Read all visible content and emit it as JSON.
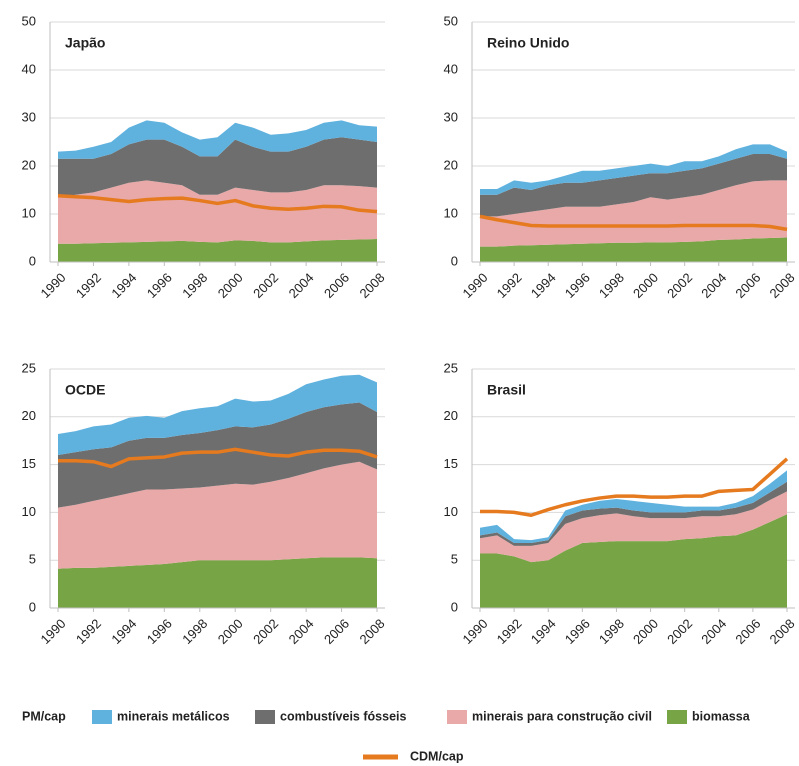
{
  "chart_data": [
    {
      "type": "area",
      "stacked": true,
      "title": "Japão",
      "x": [
        1990,
        1991,
        1992,
        1993,
        1994,
        1995,
        1996,
        1997,
        1998,
        1999,
        2000,
        2001,
        2002,
        2003,
        2004,
        2005,
        2006,
        2007,
        2008
      ],
      "xlim": [
        1990,
        2008
      ],
      "xticks": [
        1990,
        1992,
        1994,
        1996,
        1998,
        2000,
        2002,
        2004,
        2006,
        2008
      ],
      "ylim": [
        0,
        50
      ],
      "yticks": [
        0,
        10,
        20,
        30,
        40,
        50
      ],
      "grid": true,
      "series": [
        {
          "values": [
            1.5,
            1.7,
            2.5,
            2.5,
            3.5,
            4,
            3.5,
            3,
            3.5,
            4,
            3.5,
            4,
            3.5,
            3.8,
            3.5,
            3.5,
            3.5,
            3,
            3.2
          ]
        },
        {
          "values": [
            8,
            7.5,
            7,
            7,
            8,
            8.5,
            9,
            8,
            8,
            8,
            10,
            9,
            8.5,
            8.5,
            9,
            9.5,
            10,
            9.7,
            9.5
          ]
        },
        {
          "values": [
            9.7,
            10.2,
            10.6,
            11.5,
            12.4,
            12.8,
            12.2,
            11.6,
            9.8,
            9.9,
            11.0,
            10.6,
            10.4,
            10.4,
            10.7,
            11.5,
            11.4,
            11.1,
            10.7
          ]
        },
        {
          "values": [
            3.8,
            3.8,
            3.9,
            4.0,
            4.1,
            4.2,
            4.3,
            4.4,
            4.2,
            4.1,
            4.5,
            4.4,
            4.1,
            4.1,
            4.3,
            4.5,
            4.6,
            4.7,
            4.8
          ]
        }
      ],
      "line": {
        "values": [
          13.8,
          13.6,
          13.4,
          13.0,
          12.6,
          13.0,
          13.2,
          13.3,
          12.8,
          12.2,
          12.8,
          11.7,
          11.2,
          11.0,
          11.2,
          11.6,
          11.5,
          10.8,
          10.5
        ]
      }
    },
    {
      "type": "area",
      "stacked": true,
      "title": "Reino Unido",
      "x": [
        1990,
        1991,
        1992,
        1993,
        1994,
        1995,
        1996,
        1997,
        1998,
        1999,
        2000,
        2001,
        2002,
        2003,
        2004,
        2005,
        2006,
        2007,
        2008
      ],
      "xlim": [
        1990,
        2008
      ],
      "xticks": [
        1990,
        1992,
        1994,
        1996,
        1998,
        2000,
        2002,
        2004,
        2006,
        2008
      ],
      "ylim": [
        0,
        50
      ],
      "yticks": [
        0,
        10,
        20,
        30,
        40,
        50
      ],
      "grid": true,
      "series": [
        {
          "values": [
            1.2,
            1.2,
            1.5,
            1.5,
            1,
            1.5,
            2.5,
            2,
            2,
            2,
            2,
            1.5,
            2,
            1.5,
            1.5,
            2,
            2,
            2,
            1.5
          ]
        },
        {
          "values": [
            4.5,
            4.5,
            5.5,
            4.5,
            5,
            5,
            5,
            5.5,
            5.5,
            5.5,
            5,
            5.5,
            5.5,
            5.5,
            5.5,
            5.5,
            5.7,
            5.5,
            4.5
          ]
        },
        {
          "values": [
            6.3,
            6.3,
            6.6,
            7.0,
            7.4,
            7.8,
            7.7,
            7.6,
            8.0,
            8.5,
            9.4,
            8.9,
            9.3,
            9.7,
            10.4,
            11.3,
            11.9,
            12.0,
            11.9
          ]
        },
        {
          "values": [
            3.2,
            3.2,
            3.4,
            3.5,
            3.6,
            3.7,
            3.8,
            3.9,
            4.0,
            4.0,
            4.1,
            4.1,
            4.2,
            4.3,
            4.6,
            4.7,
            4.9,
            5.0,
            5.1
          ]
        }
      ],
      "line": {
        "values": [
          9.5,
          8.8,
          8.2,
          7.6,
          7.5,
          7.5,
          7.5,
          7.5,
          7.5,
          7.5,
          7.5,
          7.5,
          7.6,
          7.6,
          7.6,
          7.6,
          7.6,
          7.4,
          6.8
        ]
      }
    },
    {
      "type": "area",
      "stacked": true,
      "title": "OCDE",
      "x": [
        1990,
        1991,
        1992,
        1993,
        1994,
        1995,
        1996,
        1997,
        1998,
        1999,
        2000,
        2001,
        2002,
        2003,
        2004,
        2005,
        2006,
        2007,
        2008
      ],
      "xlim": [
        1990,
        2008
      ],
      "xticks": [
        1990,
        1992,
        1994,
        1996,
        1998,
        2000,
        2002,
        2004,
        2006,
        2008
      ],
      "ylim": [
        0,
        25
      ],
      "yticks": [
        0,
        5,
        10,
        15,
        20,
        25
      ],
      "grid": true,
      "series": [
        {
          "values": [
            2.2,
            2.2,
            2.4,
            2.4,
            2.4,
            2.3,
            2.1,
            2.5,
            2.6,
            2.5,
            2.9,
            2.7,
            2.5,
            2.6,
            2.9,
            2.9,
            3.0,
            2.9,
            3.1
          ]
        },
        {
          "values": [
            5.5,
            5.5,
            5.4,
            5.2,
            5.5,
            5.4,
            5.4,
            5.6,
            5.7,
            5.8,
            6.0,
            6.0,
            6.0,
            6.2,
            6.4,
            6.4,
            6.3,
            6.2,
            6.0
          ]
        },
        {
          "values": [
            6.4,
            6.6,
            7.0,
            7.3,
            7.6,
            7.9,
            7.8,
            7.7,
            7.6,
            7.8,
            8.0,
            7.9,
            8.2,
            8.5,
            8.9,
            9.3,
            9.7,
            10.0,
            9.3
          ]
        },
        {
          "values": [
            4.1,
            4.2,
            4.2,
            4.3,
            4.4,
            4.5,
            4.6,
            4.8,
            5.0,
            5.0,
            5.0,
            5.0,
            5.0,
            5.1,
            5.2,
            5.3,
            5.3,
            5.3,
            5.2
          ]
        }
      ],
      "line": {
        "values": [
          15.4,
          15.4,
          15.3,
          14.8,
          15.6,
          15.7,
          15.8,
          16.2,
          16.3,
          16.3,
          16.6,
          16.3,
          16.0,
          15.9,
          16.3,
          16.5,
          16.5,
          16.4,
          15.8
        ]
      }
    },
    {
      "type": "area",
      "stacked": true,
      "title": "Brasil",
      "x": [
        1990,
        1991,
        1992,
        1993,
        1994,
        1995,
        1996,
        1997,
        1998,
        1999,
        2000,
        2001,
        2002,
        2003,
        2004,
        2005,
        2006,
        2007,
        2008
      ],
      "xlim": [
        1990,
        2008
      ],
      "xticks": [
        1990,
        1992,
        1994,
        1996,
        1998,
        2000,
        2002,
        2004,
        2006,
        2008
      ],
      "ylim": [
        0,
        25
      ],
      "yticks": [
        0,
        5,
        10,
        15,
        20,
        25
      ],
      "grid": true,
      "series": [
        {
          "values": [
            0.8,
            0.8,
            0.4,
            0.3,
            0.3,
            0.6,
            0.6,
            0.8,
            0.9,
            1.0,
            1.0,
            0.8,
            0.6,
            0.4,
            0.4,
            0.5,
            0.7,
            0.9,
            1.2
          ]
        },
        {
          "values": [
            0.3,
            0.3,
            0.3,
            0.3,
            0.3,
            0.8,
            0.8,
            0.7,
            0.6,
            0.6,
            0.6,
            0.6,
            0.6,
            0.6,
            0.6,
            0.7,
            0.7,
            0.8,
            1.0
          ]
        },
        {
          "values": [
            1.6,
            1.9,
            1.1,
            1.7,
            1.8,
            2.8,
            2.6,
            2.8,
            2.9,
            2.6,
            2.4,
            2.4,
            2.2,
            2.3,
            2.1,
            2.2,
            2.1,
            2.3,
            2.4
          ]
        },
        {
          "values": [
            5.7,
            5.7,
            5.4,
            4.8,
            5.0,
            6.0,
            6.8,
            6.9,
            7.0,
            7.0,
            7.0,
            7.0,
            7.2,
            7.3,
            7.5,
            7.6,
            8.2,
            9.0,
            9.8
          ]
        }
      ],
      "line": {
        "values": [
          10.1,
          10.1,
          10.0,
          9.7,
          10.3,
          10.8,
          11.2,
          11.5,
          11.7,
          11.7,
          11.6,
          11.6,
          11.7,
          11.7,
          12.2,
          12.3,
          12.4,
          14.0,
          15.6
        ]
      }
    }
  ],
  "legend": {
    "label": "PM/cap",
    "series": [
      {
        "name": "minerais metálicos",
        "color": "#5fb1de"
      },
      {
        "name": "combustíveis fósseis",
        "color": "#6e6e6e"
      },
      {
        "name": "minerais para construção civil",
        "color": "#e8a9a8"
      },
      {
        "name": "biomassa",
        "color": "#77a545"
      }
    ],
    "line": {
      "name": "CDM/cap",
      "color": "#e57a1f"
    }
  }
}
